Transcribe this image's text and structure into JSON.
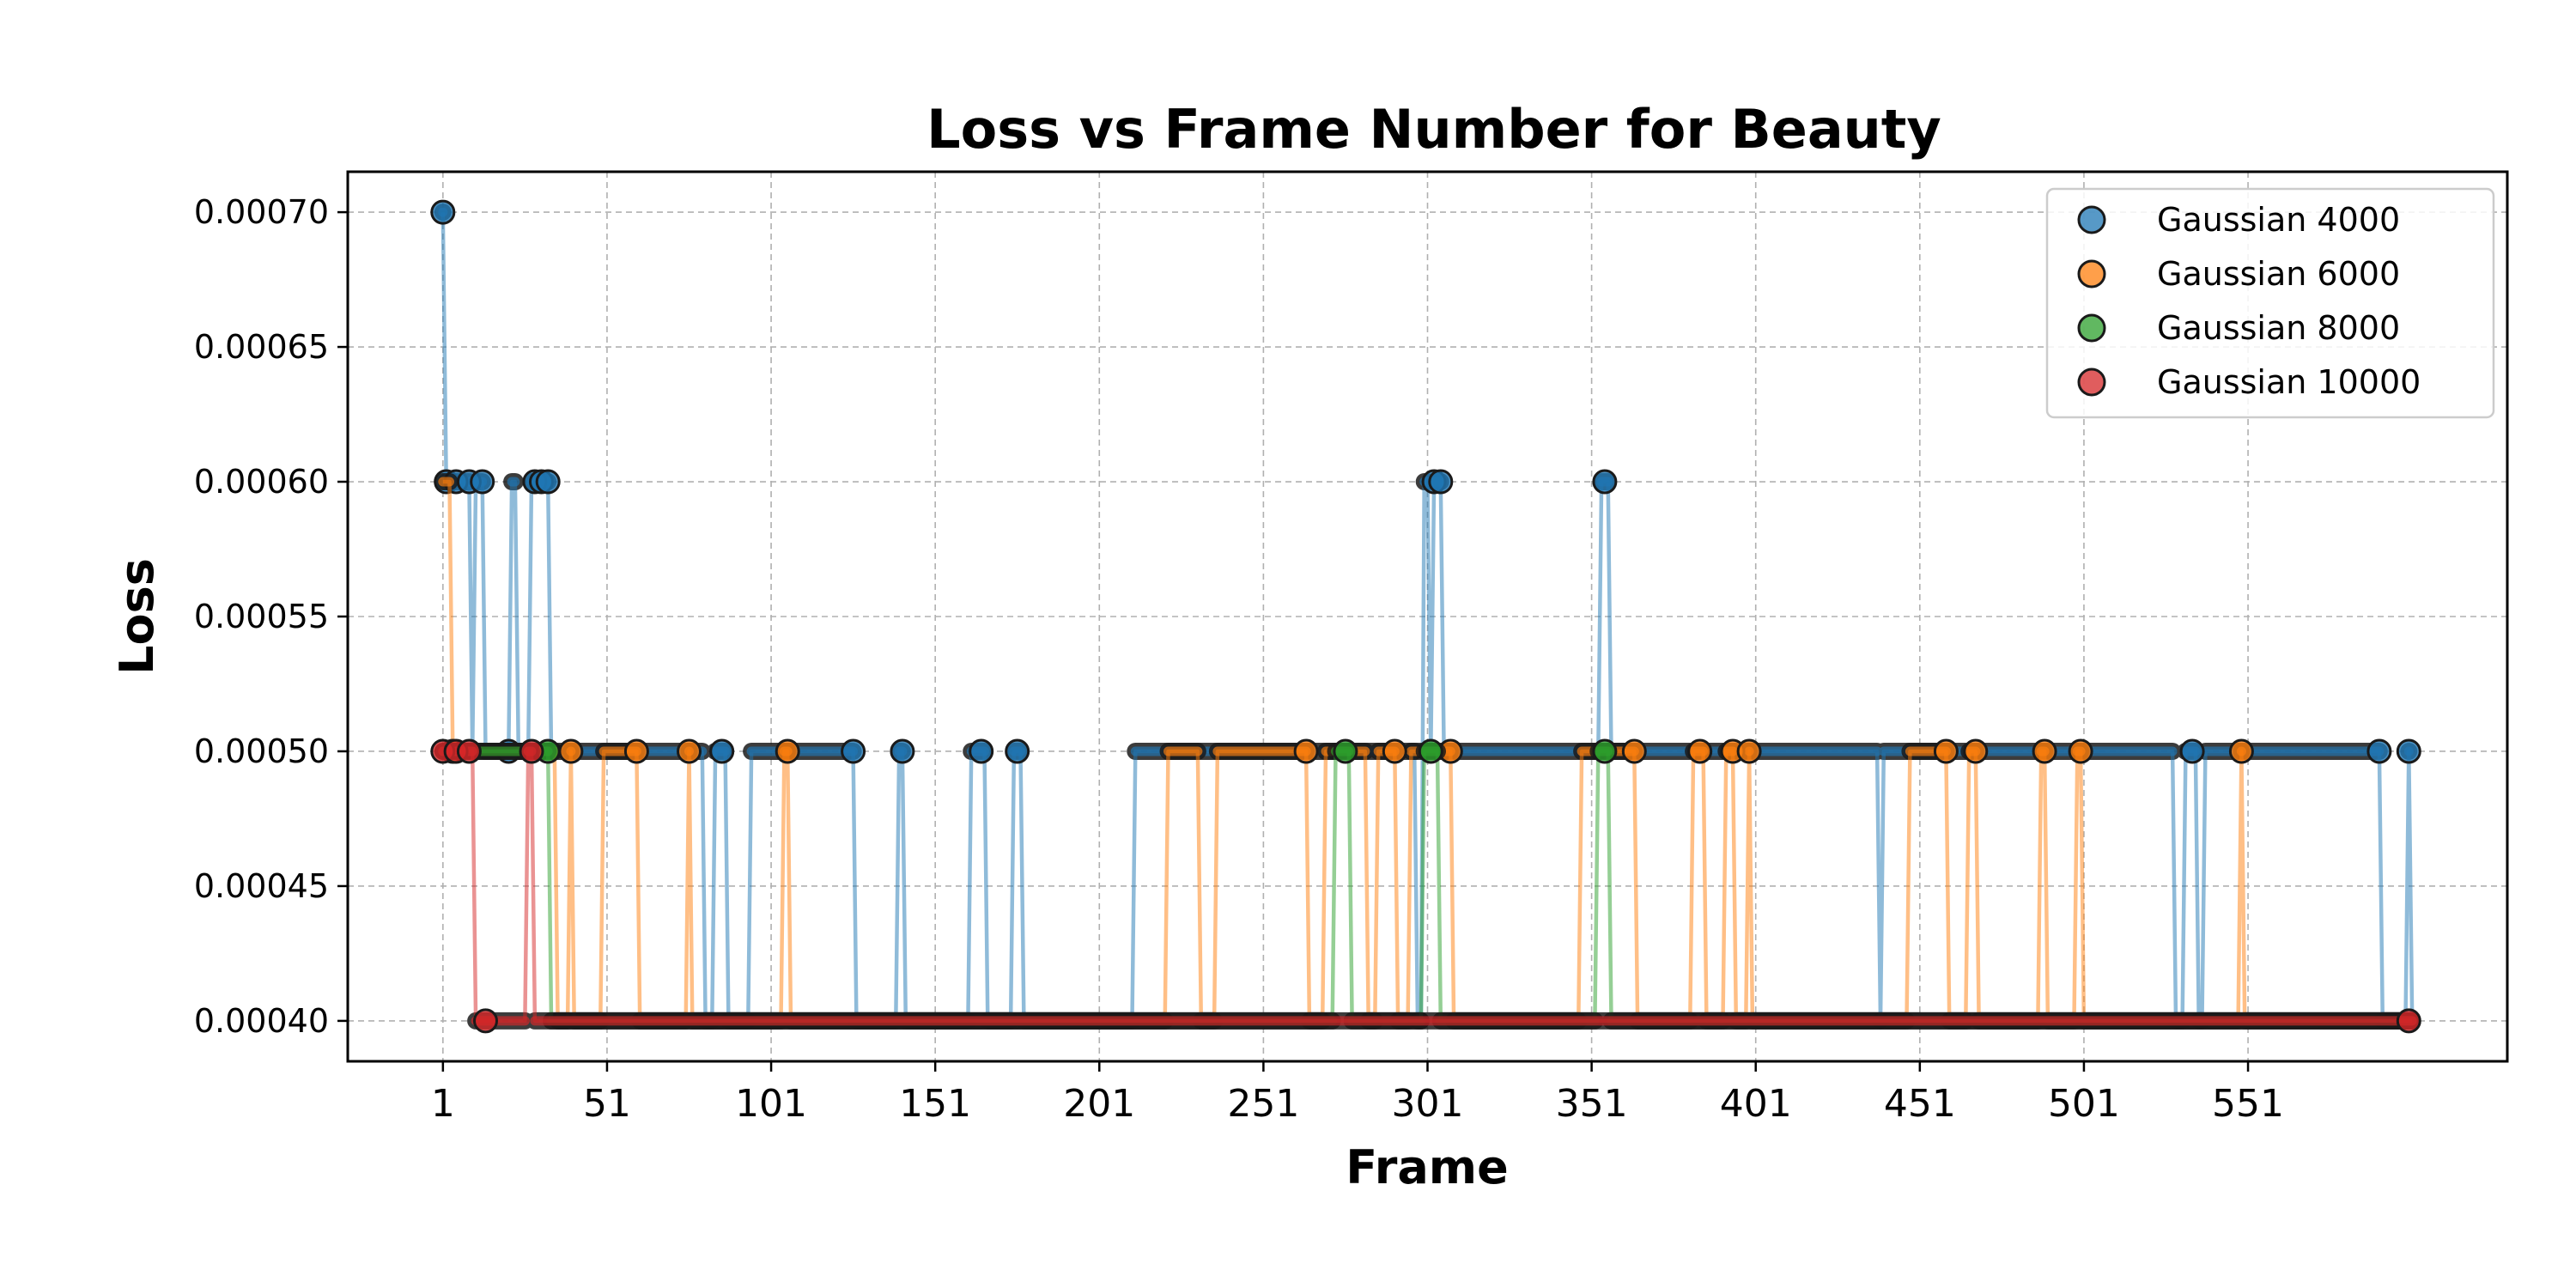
{
  "chart_data": {
    "type": "line",
    "title": "Loss vs Frame Number for Beauty",
    "xlabel": "Frame",
    "ylabel": "Loss",
    "xlim": [
      -28,
      630
    ],
    "ylim": [
      0.000385,
      0.000715
    ],
    "xticks": [
      1,
      51,
      101,
      151,
      201,
      251,
      301,
      351,
      401,
      451,
      501,
      551
    ],
    "yticks": [
      0.0004,
      0.00045,
      0.0005,
      0.00055,
      0.0006,
      0.00065,
      0.0007
    ],
    "ytick_labels": [
      "0.00040",
      "0.00045",
      "0.00050",
      "0.00055",
      "0.00060",
      "0.00065",
      "0.00070"
    ],
    "grid": true,
    "legend_position": "top-right",
    "x_max": 601,
    "series": [
      {
        "name": "Gaussian 4000",
        "color": "#1f77b4",
        "default": 0.0004,
        "runs": [
          [
            1,
            1,
            0.0007
          ],
          [
            2,
            9,
            0.0006
          ],
          [
            10,
            10,
            0.0005
          ],
          [
            11,
            13,
            0.0006
          ],
          [
            14,
            21,
            0.0005
          ],
          [
            22,
            23,
            0.0006
          ],
          [
            24,
            27,
            0.0005
          ],
          [
            28,
            33,
            0.0006
          ],
          [
            34,
            80,
            0.0005
          ],
          [
            84,
            87,
            0.0005
          ],
          [
            95,
            126,
            0.0005
          ],
          [
            140,
            141,
            0.0005
          ],
          [
            162,
            166,
            0.0005
          ],
          [
            175,
            177,
            0.0005
          ],
          [
            212,
            297,
            0.0005
          ],
          [
            300,
            301,
            0.0006
          ],
          [
            302,
            302,
            0.0005
          ],
          [
            303,
            305,
            0.0006
          ],
          [
            306,
            353,
            0.0005
          ],
          [
            354,
            356,
            0.0006
          ],
          [
            357,
            436,
            0.0005
          ],
          [
            437,
            438,
            0.0005
          ],
          [
            440,
            528,
            0.0005
          ],
          [
            532,
            535,
            0.0005
          ],
          [
            538,
            591,
            0.0005
          ],
          [
            600,
            600,
            0.0005
          ]
        ],
        "markers": [
          1,
          2,
          5,
          9,
          13,
          21,
          29,
          31,
          33,
          86,
          126,
          141,
          165,
          176,
          303,
          305,
          355,
          534,
          591,
          600
        ]
      },
      {
        "name": "Gaussian 6000",
        "color": "#ff7f0e",
        "default": 0.0004,
        "runs": [
          [
            1,
            3,
            0.0006
          ],
          [
            4,
            35,
            0.0005
          ],
          [
            40,
            40,
            0.0005
          ],
          [
            50,
            60,
            0.0005
          ],
          [
            76,
            76,
            0.0005
          ],
          [
            105,
            106,
            0.0005
          ],
          [
            222,
            231,
            0.0005
          ],
          [
            237,
            264,
            0.0005
          ],
          [
            270,
            282,
            0.0005
          ],
          [
            286,
            291,
            0.0005
          ],
          [
            296,
            308,
            0.0005
          ],
          [
            348,
            364,
            0.0005
          ],
          [
            382,
            385,
            0.0005
          ],
          [
            392,
            394,
            0.0005
          ],
          [
            399,
            399,
            0.0005
          ],
          [
            448,
            459,
            0.0005
          ],
          [
            466,
            468,
            0.0005
          ],
          [
            488,
            489,
            0.0005
          ],
          [
            499,
            500,
            0.0005
          ],
          [
            549,
            549,
            0.0005
          ]
        ],
        "markers": [
          4,
          40,
          60,
          76,
          106,
          264,
          291,
          308,
          364,
          384,
          394,
          399,
          459,
          468,
          489,
          500,
          549
        ]
      },
      {
        "name": "Gaussian 8000",
        "color": "#2ca02c",
        "default": 0.0004,
        "runs": [
          [
            1,
            29,
            0.0005
          ],
          [
            30,
            33,
            0.0005
          ],
          [
            273,
            277,
            0.0005
          ],
          [
            300,
            304,
            0.0005
          ],
          [
            353,
            356,
            0.0005
          ]
        ],
        "markers": [
          33,
          276,
          302,
          355
        ]
      },
      {
        "name": "Gaussian 10000",
        "color": "#d62728",
        "default": 0.0004,
        "runs": [
          [
            1,
            10,
            0.0005
          ],
          [
            27,
            28,
            0.0005
          ]
        ],
        "markers": [
          1,
          5,
          9,
          14,
          28,
          600
        ]
      }
    ]
  }
}
